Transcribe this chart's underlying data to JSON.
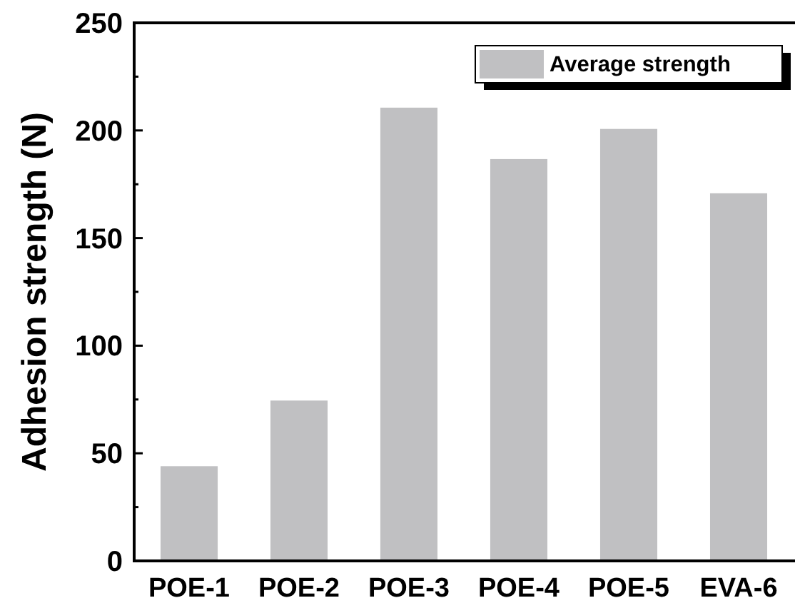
{
  "chart_data": {
    "type": "bar",
    "ylabel": "Adhesion strength  (N)",
    "categories": [
      "POE-1",
      "POE-2",
      "POE-3",
      "POE-4",
      "POE-5",
      "EVA-6"
    ],
    "series": [
      {
        "name": "Average strength",
        "color": "#c0c0c2",
        "values": [
          44,
          74.5,
          210.6,
          186.7,
          200.7,
          170.8
        ]
      }
    ],
    "ylim": [
      0,
      250
    ],
    "yticks": [
      0,
      50,
      100,
      150,
      200,
      250
    ],
    "legend": "top right",
    "grid": false
  }
}
